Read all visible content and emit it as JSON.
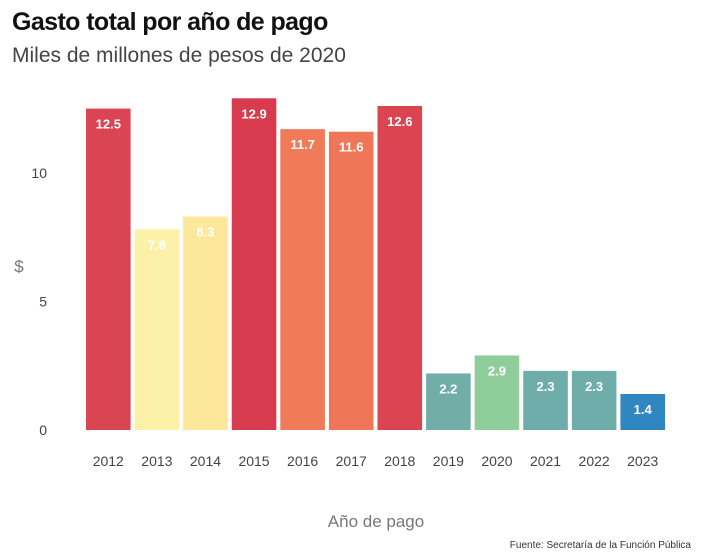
{
  "header": {
    "title": "Gasto total por año de pago",
    "subtitle": "Miles de millones de pesos de 2020"
  },
  "footer": {
    "source": "Fuente: Secretaría de la Función Pública"
  },
  "chart_data": {
    "type": "bar",
    "title": "Gasto total por año de pago",
    "subtitle": "Miles de millones de pesos de 2020",
    "xlabel": "Año de pago",
    "ylabel": "$",
    "categories": [
      "2012",
      "2013",
      "2014",
      "2015",
      "2016",
      "2017",
      "2018",
      "2019",
      "2020",
      "2021",
      "2022",
      "2023"
    ],
    "values": [
      12.5,
      7.8,
      8.3,
      12.9,
      11.7,
      11.6,
      12.6,
      2.2,
      2.9,
      2.3,
      2.3,
      1.4
    ],
    "data_labels": [
      "12.5",
      "7.8",
      "8.3",
      "12.9",
      "11.7",
      "11.6",
      "12.6",
      "2.2",
      "2.9",
      "2.3",
      "2.3",
      "1.4"
    ],
    "colors": [
      "#d94552",
      "#fdf0a8",
      "#fde79a",
      "#d83a4e",
      "#ef7b59",
      "#ef7757",
      "#db4552",
      "#72aea8",
      "#8fcd9b",
      "#6fadab",
      "#6fadab",
      "#2f86c1"
    ],
    "yticks": [
      0,
      5,
      10
    ],
    "ylim": [
      0,
      13.3
    ],
    "grid": false,
    "legend": "none"
  }
}
